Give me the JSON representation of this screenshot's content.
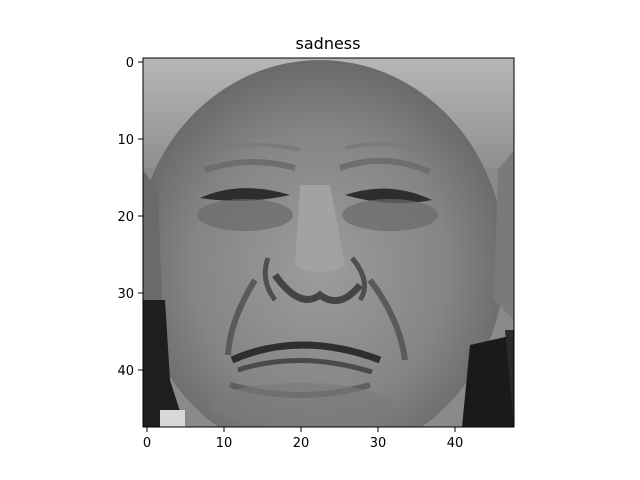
{
  "title": "sadness",
  "image": {
    "subject": "grayscale-face",
    "grid_size": [
      48,
      48
    ],
    "colormap": "gray"
  },
  "axes": {
    "x_ticks": [
      "0",
      "10",
      "20",
      "30",
      "40"
    ],
    "y_ticks": [
      "0",
      "10",
      "20",
      "30",
      "40"
    ]
  }
}
